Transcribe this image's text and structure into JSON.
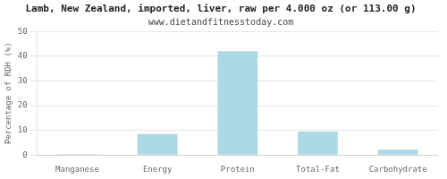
{
  "chart_data": {
    "type": "bar",
    "title": "Lamb, New Zealand, imported, liver, raw per 4.000 oz (or 113.00 g)",
    "subtitle": "www.dietandfitnesstoday.com",
    "categories": [
      "Manganese",
      "Energy",
      "Protein",
      "Total-Fat",
      "Carbohydrate"
    ],
    "values": [
      0.3,
      8.5,
      42.0,
      9.5,
      2.2
    ],
    "color": "#add8e6",
    "ylabel": "Percentage of RDH (%)",
    "ylim": [
      0,
      50
    ],
    "yticks": [
      0,
      10,
      20,
      30,
      40,
      50
    ],
    "grid": true
  }
}
